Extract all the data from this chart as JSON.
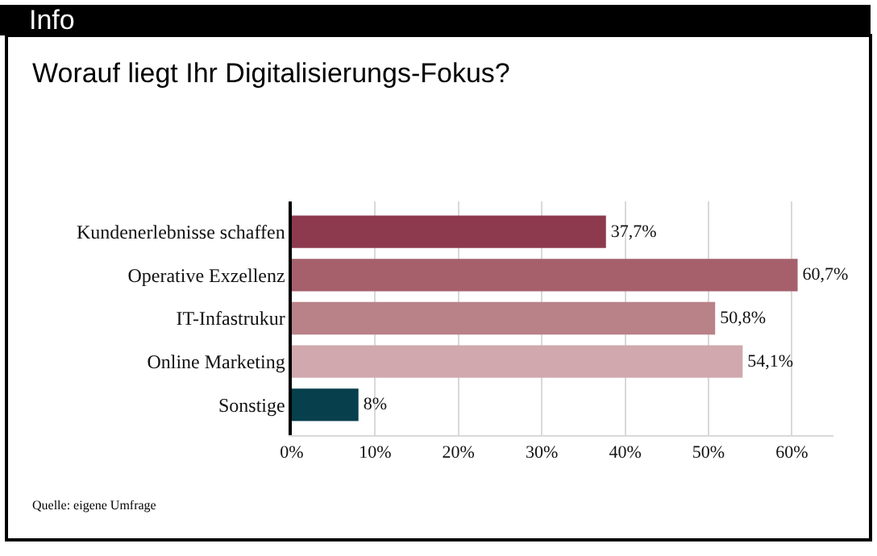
{
  "chart_data": {
    "type": "bar",
    "orientation": "horizontal",
    "title": "Info",
    "subtitle": "Worauf liegt Ihr Digitalisierungs-Fokus?",
    "categories": [
      "Kundenerlebnisse schaffen",
      "Operative Exzellenz",
      "IT-Infastrukur",
      "Online Marketing",
      "Sonstige"
    ],
    "values": [
      37.7,
      60.7,
      50.8,
      54.1,
      8
    ],
    "colors": [
      "#8e3a4e",
      "#a5606c",
      "#b98188",
      "#d0a8ad",
      "#073f4c"
    ],
    "value_labels": [
      "37,7%",
      "60,7%",
      "50,8%",
      "54,1%",
      "8%"
    ],
    "xlim": [
      0,
      65
    ],
    "xticks": [
      {
        "value": 0,
        "label": "0%"
      },
      {
        "value": 10,
        "label": "10%"
      },
      {
        "value": 20,
        "label": "20%"
      },
      {
        "value": 30,
        "label": "30%"
      },
      {
        "value": 40,
        "label": "40%"
      },
      {
        "value": 50,
        "label": "50%"
      },
      {
        "value": 60,
        "label": "60%"
      }
    ],
    "grid": "x",
    "annotations": [
      "Quelle: eigene Umfrage"
    ]
  }
}
